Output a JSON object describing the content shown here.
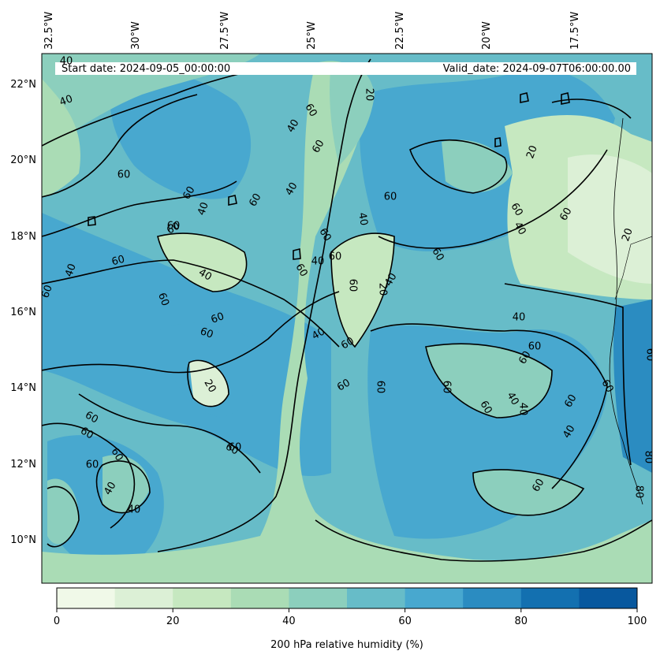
{
  "header": {
    "start_date": "Start date: 2024-09-05_00:00:00",
    "valid_date": "Valid_date: 2024-09-07T06:00:00.00"
  },
  "axes": {
    "lon_ticks": [
      "32.5°W",
      "30°W",
      "27.5°W",
      "25°W",
      "22.5°W",
      "20°W",
      "17.5°W"
    ],
    "lat_ticks": [
      "22°N",
      "20°N",
      "18°N",
      "16°N",
      "14°N",
      "12°N",
      "10°N"
    ]
  },
  "contour_labels": [
    "40",
    "40",
    "60",
    "60",
    "40",
    "60",
    "60",
    "40",
    "60",
    "60",
    "40",
    "60",
    "40",
    "60",
    "60",
    "40",
    "60",
    "20",
    "40",
    "60",
    "60",
    "60",
    "40",
    "60",
    "20",
    "20",
    "60",
    "40",
    "60",
    "40",
    "60",
    "60",
    "40",
    "60",
    "60",
    "20",
    "60",
    "60",
    "60",
    "40",
    "60",
    "60",
    "60",
    "60",
    "40",
    "40",
    "60",
    "60",
    "40",
    "60",
    "80",
    "80",
    "60",
    "20",
    "60",
    "60",
    "60",
    "60",
    "40",
    "60",
    "60",
    "40"
  ],
  "colorbar": {
    "label": "200 hPa relative humidity (%)",
    "ticks": [
      "0",
      "20",
      "40",
      "60",
      "80",
      "100"
    ],
    "levels": [
      0,
      10,
      20,
      30,
      40,
      50,
      60,
      70,
      80,
      90,
      100
    ],
    "colors": [
      "#f0f9e8",
      "#dcf0d6",
      "#c6e8c0",
      "#aadcb5",
      "#8ccfbd",
      "#67bcc8",
      "#48a8cf",
      "#2b8cc1",
      "#1370b0",
      "#08589e"
    ]
  }
}
